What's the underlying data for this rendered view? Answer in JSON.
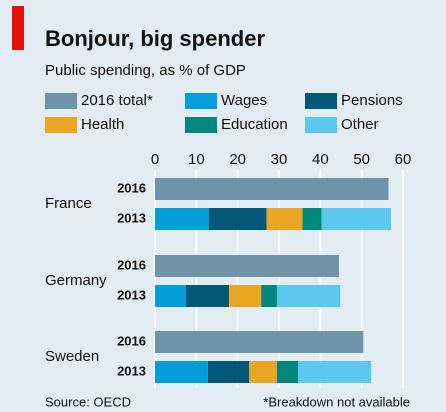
{
  "chart_data": {
    "type": "bar",
    "orientation": "horizontal",
    "title": "Bonjour, big spender",
    "subtitle": "Public spending, as % of GDP",
    "categories": [
      "France",
      "Germany",
      "Sweden"
    ],
    "rows": [
      "2016",
      "2013"
    ],
    "total": {
      "name": "2016 total*",
      "color": "#6f94a9",
      "values": [
        56.5,
        44.5,
        50.4
      ]
    },
    "series": [
      {
        "name": "Wages",
        "color": "#049fdb",
        "values": [
          13,
          7.5,
          12.8
        ]
      },
      {
        "name": "Pensions",
        "color": "#035878",
        "values": [
          14,
          10.4,
          10
        ]
      },
      {
        "name": "Health",
        "color": "#eaa523",
        "values": [
          8.7,
          7.8,
          6.7
        ]
      },
      {
        "name": "Education",
        "color": "#01877d",
        "values": [
          4.6,
          3.8,
          5.1
        ]
      },
      {
        "name": "Other",
        "color": "#5dc8ef",
        "values": [
          16.8,
          15.3,
          17.7
        ]
      }
    ],
    "xlim": [
      0,
      60
    ],
    "xticks": [
      0,
      10,
      20,
      30,
      40,
      50,
      60
    ],
    "grid": true,
    "source": "Source: OECD",
    "footnote": "*Breakdown not available"
  }
}
